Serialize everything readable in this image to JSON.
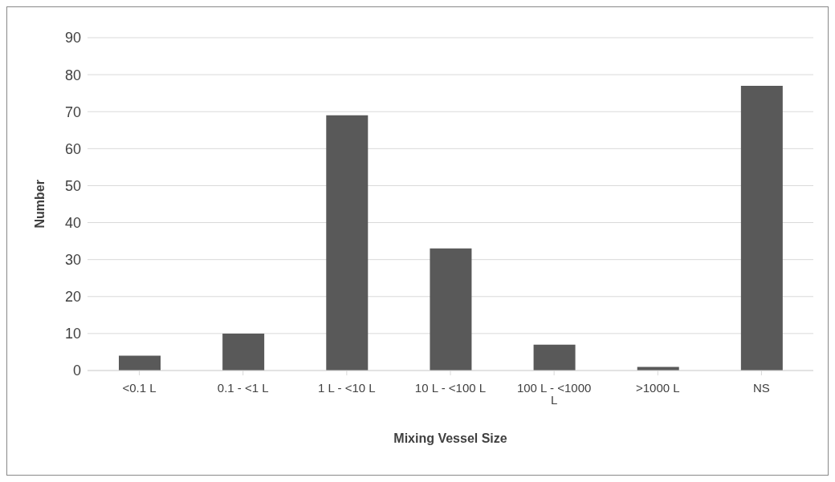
{
  "chart_data": {
    "type": "bar",
    "xlabel": "Mixing Vessel Size",
    "ylabel": "Number",
    "categories": [
      "<0.1 L",
      "0.1 - <1 L",
      "1 L - <10 L",
      "10 L - <100 L",
      "100 L - <1000 L",
      ">1000 L",
      "NS"
    ],
    "values": [
      4,
      10,
      69,
      33,
      7,
      1,
      77
    ],
    "color": "#595959",
    "ylim": [
      0,
      90
    ],
    "yticks": [
      0,
      10,
      20,
      30,
      40,
      50,
      60,
      70,
      80,
      90
    ],
    "grid": "y"
  }
}
